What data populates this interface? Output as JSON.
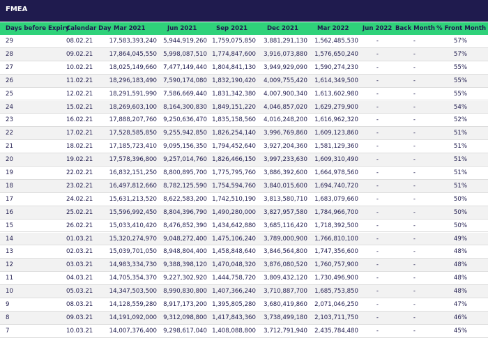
{
  "title": "FMEA",
  "table": {
    "header": [
      "Days before Expiry",
      "Calendar Day",
      "Mar 2021",
      "Jun 2021",
      "Sep 2021",
      "Dec 2021",
      "Mar 2022",
      "Jun 2022",
      "Back Month",
      "% Front Month"
    ],
    "rows": [
      [
        "29",
        "08.02.21",
        "17,583,393,240",
        "5,944,919,260",
        "1,759,075,850",
        "3,881,291,130",
        "1,562,485,530",
        "-",
        "-",
        "57%"
      ],
      [
        "28",
        "09.02.21",
        "17,864,045,550",
        "5,998,087,510",
        "1,774,847,600",
        "3,916,073,880",
        "1,576,650,240",
        "-",
        "-",
        "57%"
      ],
      [
        "27",
        "10.02.21",
        "18,025,149,660",
        "7,477,149,440",
        "1,804,841,130",
        "3,949,929,090",
        "1,590,274,230",
        "-",
        "-",
        "55%"
      ],
      [
        "26",
        "11.02.21",
        "18,296,183,490",
        "7,590,174,080",
        "1,832,190,420",
        "4,009,755,420",
        "1,614,349,500",
        "-",
        "-",
        "55%"
      ],
      [
        "25",
        "12.02.21",
        "18,291,591,990",
        "7,586,669,440",
        "1,831,342,380",
        "4,007,900,340",
        "1,613,602,980",
        "-",
        "-",
        "55%"
      ],
      [
        "24",
        "15.02.21",
        "18,269,603,100",
        "8,164,300,830",
        "1,849,151,220",
        "4,046,857,020",
        "1,629,279,900",
        "-",
        "-",
        "54%"
      ],
      [
        "23",
        "16.02.21",
        "17,888,207,760",
        "9,250,636,470",
        "1,835,158,560",
        "4,016,248,200",
        "1,616,962,320",
        "-",
        "-",
        "52%"
      ],
      [
        "22",
        "17.02.21",
        "17,528,585,850",
        "9,255,942,850",
        "1,826,254,140",
        "3,996,769,860",
        "1,609,123,860",
        "-",
        "-",
        "51%"
      ],
      [
        "21",
        "18.02.21",
        "17,185,723,410",
        "9,095,156,350",
        "1,794,452,640",
        "3,927,204,360",
        "1,581,129,360",
        "-",
        "-",
        "51%"
      ],
      [
        "20",
        "19.02.21",
        "17,578,396,800",
        "9,257,014,760",
        "1,826,466,150",
        "3,997,233,630",
        "1,609,310,490",
        "-",
        "-",
        "51%"
      ],
      [
        "19",
        "22.02.21",
        "16,832,151,250",
        "8,800,895,700",
        "1,775,795,760",
        "3,886,392,600",
        "1,664,978,560",
        "-",
        "-",
        "51%"
      ],
      [
        "18",
        "23.02.21",
        "16,497,812,660",
        "8,782,125,590",
        "1,754,594,760",
        "3,840,015,600",
        "1,694,740,720",
        "-",
        "-",
        "51%"
      ],
      [
        "17",
        "24.02.21",
        "15,631,213,520",
        "8,622,583,200",
        "1,742,510,190",
        "3,813,580,710",
        "1,683,079,660",
        "-",
        "-",
        "50%"
      ],
      [
        "16",
        "25.02.21",
        "15,596,992,450",
        "8,804,396,790",
        "1,490,280,000",
        "3,827,957,580",
        "1,784,966,700",
        "-",
        "-",
        "50%"
      ],
      [
        "15",
        "26.02.21",
        "15,033,410,420",
        "8,476,852,390",
        "1,434,642,880",
        "3,685,116,420",
        "1,718,392,500",
        "-",
        "-",
        "50%"
      ],
      [
        "14",
        "01.03.21",
        "15,320,274,970",
        "9,048,272,400",
        "1,475,106,240",
        "3,789,000,900",
        "1,766,810,100",
        "-",
        "-",
        "49%"
      ],
      [
        "13",
        "02.03.21",
        "15,039,701,050",
        "8,948,804,400",
        "1,458,848,640",
        "3,846,564,800",
        "1,747,356,600",
        "-",
        "-",
        "48%"
      ],
      [
        "12",
        "03.03.21",
        "14,983,334,730",
        "9,388,398,120",
        "1,470,048,320",
        "3,876,080,520",
        "1,760,757,900",
        "-",
        "-",
        "48%"
      ],
      [
        "11",
        "04.03.21",
        "14,705,354,370",
        "9,227,302,920",
        "1,444,758,720",
        "3,809,432,120",
        "1,730,496,900",
        "-",
        "-",
        "48%"
      ],
      [
        "10",
        "05.03.21",
        "14,347,503,500",
        "8,990,830,800",
        "1,407,366,240",
        "3,710,887,700",
        "1,685,753,850",
        "-",
        "-",
        "48%"
      ],
      [
        "9",
        "08.03.21",
        "14,128,559,280",
        "8,917,173,200",
        "1,395,805,280",
        "3,680,419,860",
        "2,071,046,250",
        "-",
        "-",
        "47%"
      ],
      [
        "8",
        "09.03.21",
        "14,191,092,000",
        "9,312,098,800",
        "1,417,843,360",
        "3,738,499,180",
        "2,103,711,750",
        "-",
        "-",
        "46%"
      ],
      [
        "7",
        "10.03.21",
        "14,007,376,400",
        "9,298,617,040",
        "1,408,088,800",
        "3,712,791,940",
        "2,435,784,480",
        "-",
        "-",
        "45%"
      ]
    ]
  }
}
